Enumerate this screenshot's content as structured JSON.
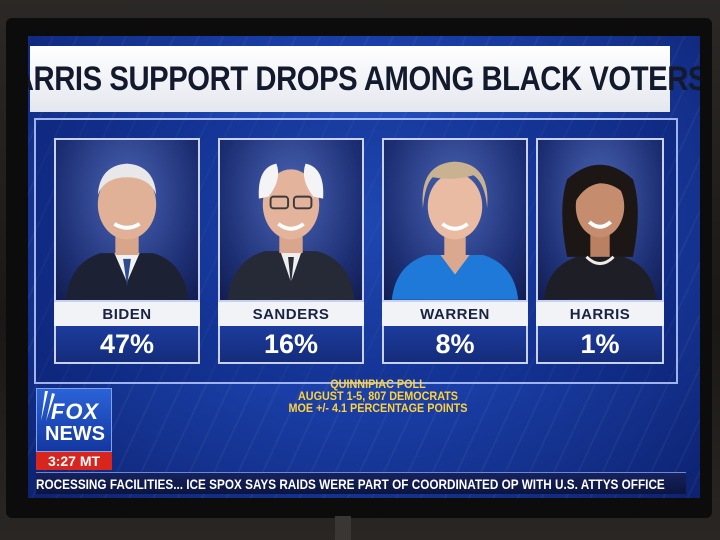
{
  "headline": "HARRIS SUPPORT DROPS AMONG BLACK VOTERS",
  "candidates": [
    {
      "name": "BIDEN",
      "percent": "47%"
    },
    {
      "name": "SANDERS",
      "percent": "16%"
    },
    {
      "name": "WARREN",
      "percent": "8%"
    },
    {
      "name": "HARRIS",
      "percent": "1%"
    }
  ],
  "poll": {
    "line1": "QUINNIPIAC POLL",
    "line2": "AUGUST 1-5, 807 DEMOCRATS",
    "line3": "MOE +/- 4.1 PERCENTAGE POINTS"
  },
  "logo": {
    "line1": "FOX",
    "line2": "NEWS",
    "time": "3:27 MT"
  },
  "ticker": "ROCESSING FACILITIES...  ICE SPOX SAYS RAIDS WERE PART OF COORDINATED OP WITH U.S. ATTYS OFFICE",
  "colors": {
    "screen_blue": "#1a3fa8",
    "headline_bg": "#ffffff",
    "poll_text": "#ffd23a",
    "logo_time_red": "#d8261f"
  }
}
